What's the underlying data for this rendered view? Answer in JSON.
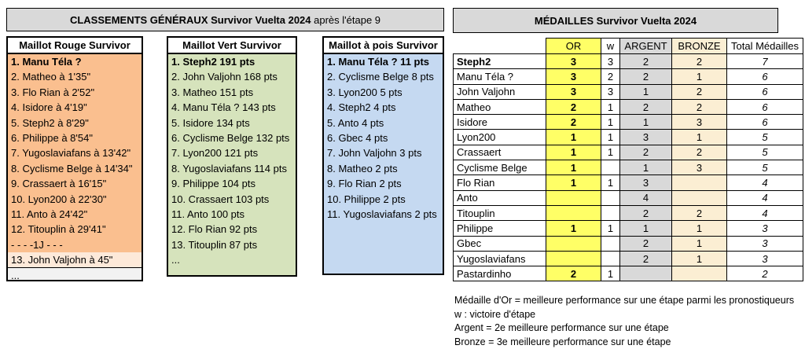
{
  "left_panel": {
    "title_bold": "CLASSEMENTS GÉNÉRAUX Survivor Vuelta 2024",
    "title_suffix": " après l'étape 9",
    "columns": [
      {
        "header": "Maillot Rouge Survivor",
        "rows": [
          {
            "text": "1. Manu Téla ?",
            "bold": true
          },
          {
            "text": "2. Matheo à 1'35\""
          },
          {
            "text": "3. Flo Rian à 2'52\""
          },
          {
            "text": "4. Isidore à 4'19\""
          },
          {
            "text": "5. Steph2 à 8'29\""
          },
          {
            "text": "6. Philippe à 8'54\""
          },
          {
            "text": "7. Yugoslaviafans à 13'42\""
          },
          {
            "text": "8. Cyclisme Belge à 14'34\""
          },
          {
            "text": "9. Crassaert à 16'15\""
          },
          {
            "text": "10. Lyon200 à 22'30\""
          },
          {
            "text": "11. Anto à 24'42\""
          },
          {
            "text": "12. Titouplin à 29'41\""
          },
          {
            "text": "- - - -1J - - -"
          },
          {
            "text": "13. John Valjohn à 45\"",
            "variant": "alt"
          },
          {
            "text": "...",
            "variant": "dots"
          }
        ]
      },
      {
        "header": "Maillot Vert Survivor",
        "rows": [
          {
            "text": "1. Steph2 191 pts",
            "bold": true
          },
          {
            "text": "2. John Valjohn 168 pts"
          },
          {
            "text": "3. Matheo 151 pts"
          },
          {
            "text": "4. Manu Téla ? 143 pts"
          },
          {
            "text": "5. Isidore 134 pts"
          },
          {
            "text": "6. Cyclisme Belge 132 pts"
          },
          {
            "text": "7. Lyon200 121 pts"
          },
          {
            "text": "8. Yugoslaviafans 114 pts"
          },
          {
            "text": "9. Philippe 104 pts"
          },
          {
            "text": "10. Crassaert 103 pts"
          },
          {
            "text": "11. Anto 100 pts"
          },
          {
            "text": "12. Flo Rian 92 pts"
          },
          {
            "text": "13. Titouplin 87 pts"
          },
          {
            "text": "..."
          }
        ]
      },
      {
        "header": "Maillot à pois Survivor",
        "rows": [
          {
            "text": "1. Manu Téla ? 11 pts",
            "bold": true
          },
          {
            "text": "2. Cyclisme Belge 8 pts"
          },
          {
            "text": "3. Lyon200 5 pts"
          },
          {
            "text": "4. Steph2 4 pts"
          },
          {
            "text": "5. Anto 4 pts"
          },
          {
            "text": "6. Gbec 4 pts"
          },
          {
            "text": "7. John Valjohn 3 pts"
          },
          {
            "text": "8. Matheo 2 pts"
          },
          {
            "text": "9. Flo Rian 2 pts"
          },
          {
            "text": "10. Philippe 2 pts"
          },
          {
            "text": "11. Yugoslaviafans 2 pts"
          }
        ]
      }
    ]
  },
  "medals_panel": {
    "title": "MÉDAILLES Survivor Vuelta 2024",
    "columns": [
      "",
      "OR",
      "w",
      "ARGENT",
      "BRONZE",
      "Total Médailles"
    ],
    "rows": [
      {
        "name": "Steph2",
        "bold": true,
        "or": "3",
        "w": "3",
        "argent": "2",
        "bronze": "2",
        "total": "7"
      },
      {
        "name": "Manu Téla ?",
        "or": "3",
        "w": "2",
        "argent": "2",
        "bronze": "1",
        "total": "6"
      },
      {
        "name": "John Valjohn",
        "or": "3",
        "w": "3",
        "argent": "1",
        "bronze": "2",
        "total": "6"
      },
      {
        "name": "Matheo",
        "or": "2",
        "w": "1",
        "argent": "2",
        "bronze": "2",
        "total": "6"
      },
      {
        "name": "Isidore",
        "or": "2",
        "w": "1",
        "argent": "1",
        "bronze": "3",
        "total": "6"
      },
      {
        "name": "Lyon200",
        "or": "1",
        "w": "1",
        "argent": "3",
        "bronze": "1",
        "total": "5"
      },
      {
        "name": "Crassaert",
        "or": "1",
        "w": "1",
        "argent": "2",
        "bronze": "2",
        "total": "5"
      },
      {
        "name": "Cyclisme Belge",
        "or": "1",
        "w": "",
        "argent": "1",
        "bronze": "3",
        "total": "5"
      },
      {
        "name": "Flo Rian",
        "or": "1",
        "w": "1",
        "argent": "3",
        "bronze": "",
        "total": "4"
      },
      {
        "name": "Anto",
        "or": "",
        "w": "",
        "argent": "4",
        "bronze": "",
        "total": "4"
      },
      {
        "name": "Titouplin",
        "or": "",
        "w": "",
        "argent": "2",
        "bronze": "2",
        "total": "4"
      },
      {
        "name": "Philippe",
        "or": "1",
        "w": "1",
        "argent": "1",
        "bronze": "1",
        "total": "3"
      },
      {
        "name": "Gbec",
        "or": "",
        "w": "",
        "argent": "2",
        "bronze": "1",
        "total": "3"
      },
      {
        "name": "Yugoslaviafans",
        "or": "",
        "w": "",
        "argent": "2",
        "bronze": "1",
        "total": "3"
      },
      {
        "name": "Pastardinho",
        "or": "2",
        "w": "1",
        "argent": "",
        "bronze": "",
        "total": "2"
      }
    ],
    "footnotes": [
      "Médaille d'Or = meilleure performance sur une étape parmi les pronostiqueurs",
      "w : victoire d'étape",
      "Argent = 2e meilleure performance sur une étape",
      "Bronze = 3e meilleure performance sur une étape"
    ]
  },
  "colors": {
    "banner_bg": "#D9D9D9",
    "rouge_bg": "#FABF8F",
    "rouge_alt_bg": "#FDE9D9",
    "rouge_dots_bg": "#F2F2F2",
    "vert_bg": "#D6E3BC",
    "pois_bg": "#C5D9F1",
    "or_bg": "#FFFF66",
    "argent_bg": "#D9D9D9",
    "bronze_bg": "#FBEED3"
  }
}
